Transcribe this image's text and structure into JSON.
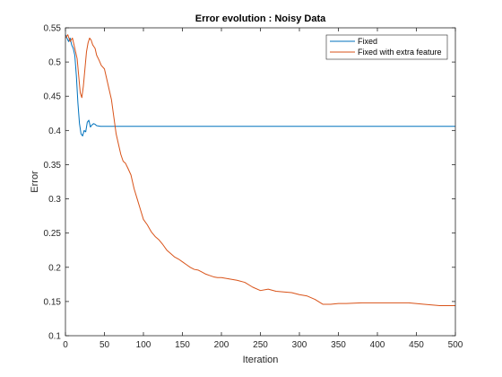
{
  "chart_data": {
    "type": "line",
    "title": "Error evolution : Noisy Data",
    "xlabel": "Iteration",
    "ylabel": "Error",
    "xlim": [
      0,
      500
    ],
    "ylim": [
      0.1,
      0.55
    ],
    "xticks": [
      0,
      50,
      100,
      150,
      200,
      250,
      300,
      350,
      400,
      450,
      500
    ],
    "yticks": [
      0.1,
      0.15,
      0.2,
      0.25,
      0.3,
      0.35,
      0.4,
      0.45,
      0.5,
      0.55
    ],
    "xtick_labels": [
      "0",
      "50",
      "100",
      "150",
      "200",
      "250",
      "300",
      "350",
      "400",
      "450",
      "500"
    ],
    "ytick_labels": [
      "0.1",
      "0.15",
      "0.2",
      "0.25",
      "0.3",
      "0.35",
      "0.4",
      "0.45",
      "0.5",
      "0.55"
    ],
    "grid": false,
    "legend_position": "top-right",
    "series": [
      {
        "name": "Fixed",
        "color": "#0072BD",
        "x": [
          0,
          2,
          4,
          6,
          8,
          10,
          12,
          14,
          16,
          18,
          20,
          22,
          24,
          26,
          28,
          30,
          32,
          34,
          36,
          38,
          40,
          45,
          50,
          100,
          150,
          200,
          250,
          300,
          350,
          400,
          450,
          500
        ],
        "y": [
          0.54,
          0.535,
          0.53,
          0.535,
          0.525,
          0.52,
          0.51,
          0.48,
          0.44,
          0.41,
          0.395,
          0.392,
          0.4,
          0.398,
          0.412,
          0.415,
          0.405,
          0.408,
          0.41,
          0.409,
          0.407,
          0.406,
          0.406,
          0.406,
          0.406,
          0.406,
          0.406,
          0.406,
          0.406,
          0.406,
          0.406,
          0.406
        ]
      },
      {
        "name": "Fixed with extra feature",
        "color": "#D95319",
        "x": [
          0,
          3,
          6,
          9,
          12,
          15,
          17,
          19,
          21,
          23,
          25,
          27,
          29,
          31,
          33,
          35,
          38,
          40,
          43,
          46,
          50,
          53,
          56,
          59,
          62,
          65,
          68,
          71,
          74,
          77,
          80,
          84,
          88,
          92,
          96,
          100,
          105,
          110,
          115,
          120,
          125,
          130,
          135,
          140,
          145,
          150,
          155,
          160,
          165,
          170,
          175,
          180,
          185,
          190,
          195,
          200,
          210,
          220,
          230,
          240,
          250,
          260,
          270,
          280,
          290,
          300,
          310,
          320,
          330,
          340,
          350,
          360,
          380,
          400,
          420,
          440,
          460,
          480,
          500
        ],
        "y": [
          0.535,
          0.54,
          0.53,
          0.535,
          0.52,
          0.505,
          0.48,
          0.455,
          0.448,
          0.465,
          0.49,
          0.515,
          0.528,
          0.535,
          0.532,
          0.525,
          0.52,
          0.51,
          0.503,
          0.495,
          0.49,
          0.475,
          0.46,
          0.445,
          0.42,
          0.395,
          0.38,
          0.365,
          0.355,
          0.352,
          0.345,
          0.335,
          0.315,
          0.3,
          0.285,
          0.27,
          0.262,
          0.252,
          0.245,
          0.24,
          0.233,
          0.225,
          0.22,
          0.215,
          0.212,
          0.208,
          0.204,
          0.2,
          0.197,
          0.196,
          0.193,
          0.19,
          0.188,
          0.186,
          0.185,
          0.185,
          0.183,
          0.181,
          0.178,
          0.171,
          0.166,
          0.168,
          0.165,
          0.164,
          0.163,
          0.16,
          0.158,
          0.153,
          0.146,
          0.146,
          0.147,
          0.147,
          0.148,
          0.148,
          0.148,
          0.148,
          0.146,
          0.144,
          0.144
        ]
      }
    ]
  }
}
